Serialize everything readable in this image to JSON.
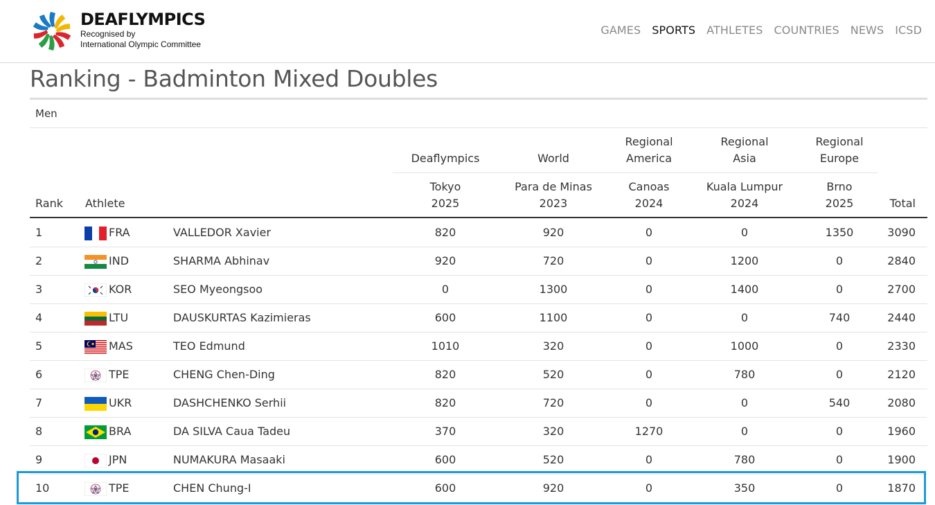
{
  "brand": {
    "name": "DEAFLYMPICS",
    "sub1": "Recognised by",
    "sub2": "International Olympic Committee"
  },
  "nav": [
    "GAMES",
    "SPORTS",
    "ATHLETES",
    "COUNTRIES",
    "NEWS",
    "ICSD"
  ],
  "nav_active": "SPORTS",
  "page_title": "Ranking - Badminton Mixed Doubles",
  "section_label": "Men",
  "table": {
    "rank_header": "Rank",
    "athlete_header": "Athlete",
    "total_header": "Total",
    "groups": [
      {
        "group": "Deaflympics",
        "event": "Tokyo",
        "year": "2025"
      },
      {
        "group": "World",
        "event": "Para de Minas",
        "year": "2023"
      },
      {
        "group_line1": "Regional",
        "group_line2": "America",
        "event": "Canoas",
        "year": "2024"
      },
      {
        "group_line1": "Regional",
        "group_line2": "Asia",
        "event": "Kuala Lumpur",
        "year": "2024"
      },
      {
        "group_line1": "Regional",
        "group_line2": "Europe",
        "event": "Brno",
        "year": "2025"
      }
    ],
    "rows": [
      {
        "rank": "1",
        "flag": "fra-flag",
        "code": "FRA",
        "name": "VALLEDOR Xavier",
        "scores": [
          "820",
          "920",
          "0",
          "0",
          "1350"
        ],
        "total": "3090"
      },
      {
        "rank": "2",
        "flag": "ind-flag",
        "code": "IND",
        "name": "SHARMA Abhinav",
        "scores": [
          "920",
          "720",
          "0",
          "1200",
          "0"
        ],
        "total": "2840"
      },
      {
        "rank": "3",
        "flag": "kor-flag",
        "code": "KOR",
        "name": "SEO Myeongsoo",
        "scores": [
          "0",
          "1300",
          "0",
          "1400",
          "0"
        ],
        "total": "2700"
      },
      {
        "rank": "4",
        "flag": "ltu-flag",
        "code": "LTU",
        "name": "DAUSKURTAS Kazimieras",
        "scores": [
          "600",
          "1100",
          "0",
          "0",
          "740"
        ],
        "total": "2440"
      },
      {
        "rank": "5",
        "flag": "mas-flag",
        "code": "MAS",
        "name": "TEO Edmund",
        "scores": [
          "1010",
          "320",
          "0",
          "1000",
          "0"
        ],
        "total": "2330"
      },
      {
        "rank": "6",
        "flag": "tpe-flag",
        "code": "TPE",
        "name": "CHENG Chen-Ding",
        "scores": [
          "820",
          "520",
          "0",
          "780",
          "0"
        ],
        "total": "2120"
      },
      {
        "rank": "7",
        "flag": "ukr-flag",
        "code": "UKR",
        "name": "DASHCHENKO Serhii",
        "scores": [
          "820",
          "720",
          "0",
          "0",
          "540"
        ],
        "total": "2080"
      },
      {
        "rank": "8",
        "flag": "bra-flag",
        "code": "BRA",
        "name": "DA SILVA Caua Tadeu",
        "scores": [
          "370",
          "320",
          "1270",
          "0",
          "0"
        ],
        "total": "1960"
      },
      {
        "rank": "9",
        "flag": "jpn-flag",
        "code": "JPN",
        "name": "NUMAKURA Masaaki",
        "scores": [
          "600",
          "520",
          "0",
          "780",
          "0"
        ],
        "total": "1900"
      },
      {
        "rank": "10",
        "flag": "tpe-flag",
        "code": "TPE",
        "name": "CHEN Chung-I",
        "scores": [
          "600",
          "920",
          "0",
          "350",
          "0"
        ],
        "total": "1870"
      }
    ],
    "highlighted_rank": "10"
  },
  "colors": {
    "highlight_border": "#1b9ad6",
    "nav_inactive": "#888888",
    "title": "#555555"
  }
}
